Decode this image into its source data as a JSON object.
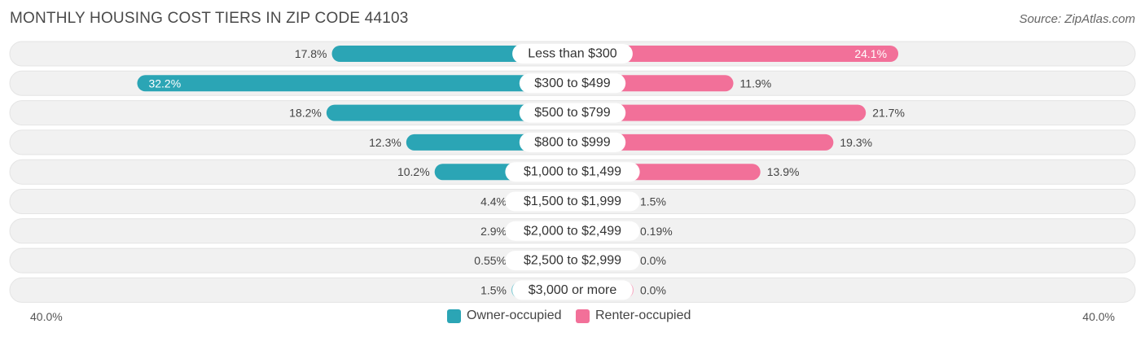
{
  "title": "MONTHLY HOUSING COST TIERS IN ZIP CODE 44103",
  "source": "Source: ZipAtlas.com",
  "axis": {
    "left_label": "40.0%",
    "right_label": "40.0%"
  },
  "legend": {
    "owner_label": "Owner-occupied",
    "renter_label": "Renter-occupied"
  },
  "colors": {
    "owner_strong": "#2ba5b5",
    "owner_light": "#7fcbd4",
    "renter_strong": "#f27099",
    "renter_light": "#f7a9c2",
    "row_bg": "#f1f1f1"
  },
  "chart_data": {
    "type": "bar",
    "orientation": "diverging-horizontal",
    "max": 40,
    "categories": [
      "Less than $300",
      "$300 to $499",
      "$500 to $799",
      "$800 to $999",
      "$1,000 to $1,499",
      "$1,500 to $1,999",
      "$2,000 to $2,499",
      "$2,500 to $2,999",
      "$3,000 or more"
    ],
    "series": [
      {
        "name": "Owner-occupied",
        "values": [
          17.8,
          32.2,
          18.2,
          12.3,
          10.2,
          4.4,
          2.9,
          0.55,
          1.5
        ],
        "labels": [
          "17.8%",
          "32.2%",
          "18.2%",
          "12.3%",
          "10.2%",
          "4.4%",
          "2.9%",
          "0.55%",
          "1.5%"
        ]
      },
      {
        "name": "Renter-occupied",
        "values": [
          24.1,
          11.9,
          21.7,
          19.3,
          13.9,
          1.5,
          0.19,
          0.0,
          0.0
        ],
        "labels": [
          "24.1%",
          "11.9%",
          "21.7%",
          "19.3%",
          "13.9%",
          "1.5%",
          "0.19%",
          "0.0%",
          "0.0%"
        ]
      }
    ]
  }
}
